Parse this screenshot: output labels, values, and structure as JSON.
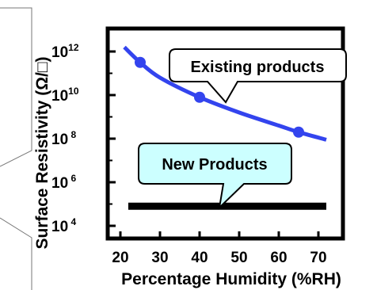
{
  "chart_data": {
    "type": "line",
    "xlabel": "Percentage Humidity (%RH)",
    "ylabel": "Surface Resistivity (Ω/□)",
    "x_ticks": [
      "20",
      "30",
      "40",
      "50",
      "60",
      "70"
    ],
    "y_ticks": [
      {
        "base": "10",
        "exp": "12"
      },
      {
        "base": "10",
        "exp": "10"
      },
      {
        "base": "10",
        "exp": " 8"
      },
      {
        "base": "10",
        "exp": " 6"
      },
      {
        "base": "10",
        "exp": " 4"
      }
    ],
    "xlim": [
      20,
      72
    ],
    "ylim_log10": [
      4,
      12
    ],
    "y_scale": "log",
    "grid": false,
    "series": [
      {
        "name": "Existing products",
        "color": "#3344ee",
        "curve": [
          [
            21,
            12.2
          ],
          [
            25,
            11.5
          ],
          [
            30,
            10.8
          ],
          [
            40,
            9.9
          ],
          [
            50,
            9.2
          ],
          [
            60,
            8.6
          ],
          [
            65,
            8.3
          ],
          [
            72,
            7.95
          ]
        ],
        "markers": [
          [
            25,
            11.5
          ],
          [
            40,
            9.9
          ],
          [
            65,
            8.3
          ]
        ]
      },
      {
        "name": "New Products",
        "color": "#000000",
        "curve": [
          [
            22,
            4.9
          ],
          [
            72,
            4.9
          ]
        ],
        "markers": [
          [
            40,
            4.9
          ]
        ]
      }
    ],
    "annotations": [
      {
        "text": "Existing products",
        "fill": "#ffffff"
      },
      {
        "text": "New Products",
        "fill": "#ccffff"
      }
    ]
  }
}
